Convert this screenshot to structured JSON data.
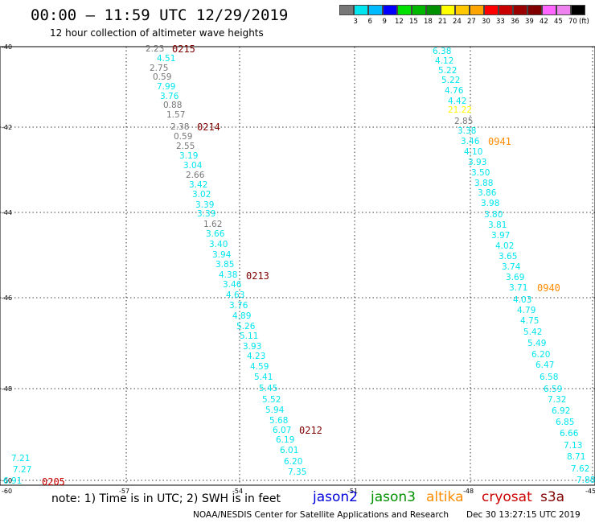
{
  "header": {
    "title": "00:00 – 11:59 UTC 12/29/2019",
    "subtitle": "12 hour collection of altimeter wave heights"
  },
  "legend": {
    "unit": "(ft)",
    "values": [
      "3",
      "6",
      "9",
      "12",
      "15",
      "18",
      "21",
      "24",
      "27",
      "30",
      "33",
      "36",
      "39",
      "42",
      "45",
      "70"
    ],
    "colors": [
      "#777777",
      "#00e5ee",
      "#00bbff",
      "#0000ff",
      "#00e100",
      "#00b800",
      "#009000",
      "#ffff00",
      "#ffc800",
      "#ffa500",
      "#ff0000",
      "#c80000",
      "#990000",
      "#800000",
      "#ff66ff",
      "#ee82ee",
      "#000000"
    ]
  },
  "axes": {
    "lat_labels": [
      "-40",
      "-42",
      "-44",
      "-46",
      "-48",
      "-50"
    ],
    "lon_labels": [
      "-60",
      "-57",
      "-54",
      "-51",
      "-48",
      "-45"
    ]
  },
  "passes": {
    "left_track": [
      "2.23",
      "4.51",
      "2.75",
      "0.59",
      "7.99",
      "3.76",
      "0.88",
      "1.57",
      "2.38",
      "0.59",
      "2.55",
      "3.19",
      "3.04",
      "2.66",
      "3.42",
      "3.02",
      "3.39",
      "3.39",
      "1.62",
      "3.66",
      "3.40",
      "3.94",
      "3.85",
      "4.38",
      "3.46",
      "4.63",
      "3.76",
      "4.89",
      "5.26",
      "5.11",
      "3.93",
      "4.23",
      "4.59",
      "5.41",
      "5.45",
      "5.52",
      "5.94",
      "5.68",
      "6.07",
      "6.19",
      "6.01",
      "6.20",
      "7.35"
    ],
    "left_colors": [
      "#777777",
      "#00e5ee",
      "#777777",
      "#777777",
      "#00e5ee",
      "#00e5ee",
      "#777777",
      "#777777",
      "#777777",
      "#777777",
      "#777777",
      "#00e5ee",
      "#00e5ee",
      "#777777",
      "#00e5ee",
      "#00e5ee",
      "#00e5ee",
      "#00e5ee",
      "#777777",
      "#00e5ee",
      "#00e5ee",
      "#00e5ee",
      "#00e5ee",
      "#00e5ee",
      "#00e5ee",
      "#00e5ee",
      "#00e5ee",
      "#00e5ee",
      "#00e5ee",
      "#00e5ee",
      "#00e5ee",
      "#00e5ee",
      "#00e5ee",
      "#00e5ee",
      "#00e5ee",
      "#00e5ee",
      "#00e5ee",
      "#00e5ee",
      "#00e5ee",
      "#00e5ee",
      "#00e5ee",
      "#00e5ee",
      "#00e5ee"
    ],
    "right_track": [
      "6.38",
      "4.12",
      "5.22",
      "5.22",
      "4.76",
      "4.42",
      "21.22",
      "2.85",
      "3.38",
      "3.46",
      "4.10",
      "3.93",
      "3.50",
      "3.88",
      "3.86",
      "3.98",
      "3.80",
      "3.81",
      "3.97",
      "4.02",
      "3.65",
      "3.74",
      "3.69",
      "3.71",
      "4.03",
      "4.79",
      "4.75",
      "5.42",
      "5.49",
      "6.20",
      "6.47",
      "6.58",
      "6.59",
      "7.32",
      "6.92",
      "6.85",
      "6.66",
      "7.13",
      "8.71",
      "7.62",
      "7.88"
    ],
    "right_colors": [
      "#00e5ee",
      "#00e5ee",
      "#00e5ee",
      "#00e5ee",
      "#00e5ee",
      "#00e5ee",
      "#ffff00",
      "#777777",
      "#00e5ee",
      "#00e5ee",
      "#00e5ee",
      "#00e5ee",
      "#00e5ee",
      "#00e5ee",
      "#00e5ee",
      "#00e5ee",
      "#00e5ee",
      "#00e5ee",
      "#00e5ee",
      "#00e5ee",
      "#00e5ee",
      "#00e5ee",
      "#00e5ee",
      "#00e5ee",
      "#00e5ee",
      "#00e5ee",
      "#00e5ee",
      "#00e5ee",
      "#00e5ee",
      "#00e5ee",
      "#00e5ee",
      "#00e5ee",
      "#00e5ee",
      "#00e5ee",
      "#00e5ee",
      "#00e5ee",
      "#00e5ee",
      "#00e5ee",
      "#00e5ee",
      "#00e5ee",
      "#00e5ee"
    ],
    "corner_track": [
      "7.21",
      "7.27",
      "6.91"
    ]
  },
  "time_labels": {
    "left": [
      "0215",
      "0214",
      "0213",
      "0212"
    ],
    "left_color": "#800000",
    "right": [
      "0941",
      "0940"
    ],
    "right_color": "#ff8c00",
    "corner": "0205",
    "corner_color": "#cc0000"
  },
  "footer": {
    "note": "note: 1) Time is in UTC; 2) SWH is in feet",
    "satellites": [
      {
        "name": "jason2",
        "color": "#0000dd"
      },
      {
        "name": "jason3",
        "color": "#009000"
      },
      {
        "name": "altika",
        "color": "#ff8c00"
      },
      {
        "name": "cryosat",
        "color": "#cc0000"
      },
      {
        "name": "s3a",
        "color": "#800000"
      }
    ],
    "credit": "NOAA/NESDIS Center for Satellite Applications and Research",
    "generated": "Dec 30 13:27:15 UTC 2019"
  }
}
